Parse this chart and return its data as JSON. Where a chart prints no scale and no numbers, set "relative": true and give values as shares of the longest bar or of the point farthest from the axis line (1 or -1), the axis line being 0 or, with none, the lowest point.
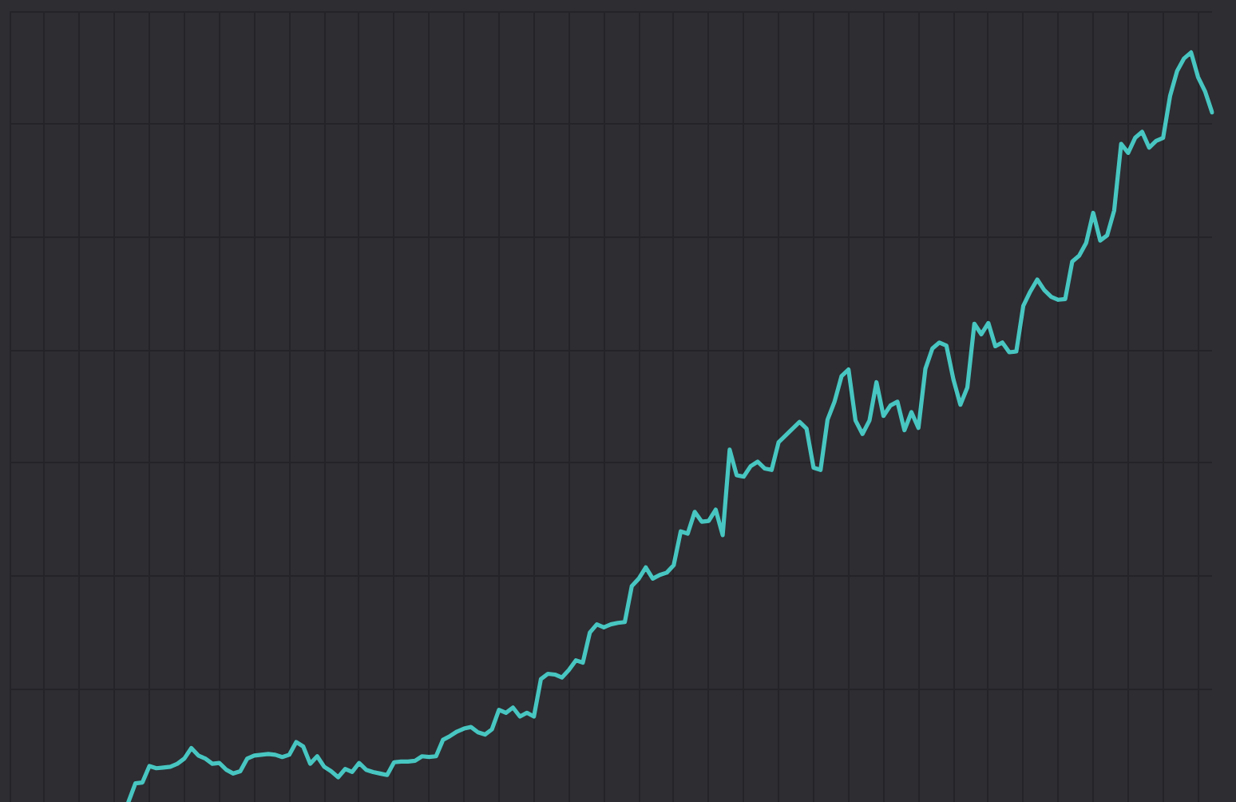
{
  "chart_data": {
    "type": "line",
    "relative": true,
    "grid": true,
    "marker": "none",
    "categories": [
      null,
      null,
      null,
      null,
      null,
      null,
      null,
      null,
      null,
      null,
      null,
      null,
      null,
      null,
      null,
      null,
      null,
      null,
      null,
      null,
      null,
      null,
      null,
      null,
      null,
      null,
      null,
      null,
      null,
      null,
      null,
      null,
      null,
      null,
      null,
      null,
      null,
      null,
      null,
      null,
      null,
      null,
      null,
      null,
      null,
      null,
      null,
      null,
      null,
      null,
      null,
      null,
      null,
      null,
      null,
      null,
      null,
      null,
      null,
      null,
      null,
      null,
      null,
      null,
      null,
      null,
      null,
      null,
      null,
      null,
      null,
      null,
      null,
      null,
      null,
      null,
      null,
      null,
      null,
      null,
      null,
      null,
      null,
      null,
      null,
      null,
      null,
      null,
      null,
      null,
      null,
      null,
      null,
      null,
      null,
      null,
      null,
      null,
      null,
      null,
      null,
      null,
      null,
      null,
      null,
      null,
      null,
      null,
      null,
      null,
      null,
      null,
      null,
      null,
      null,
      null,
      null,
      null,
      null,
      null,
      null,
      null,
      null,
      null,
      null,
      null,
      null,
      null,
      null,
      null,
      null,
      null,
      null,
      null,
      null,
      null,
      null,
      null,
      null,
      null,
      null,
      null,
      null,
      null,
      null,
      null,
      null,
      null,
      null,
      null,
      null,
      null,
      null,
      null,
      null,
      null,
      null,
      null,
      null,
      null,
      null,
      null,
      null,
      null,
      null,
      null,
      null,
      null,
      null,
      null,
      null,
      null,
      null
    ],
    "series": [
      {
        "color": "#48c6c1",
        "values": [
          null,
          null,
          null,
          null,
          null,
          null,
          null,
          null,
          null,
          null,
          null,
          null,
          null,
          null,
          null,
          null,
          null,
          0,
          0.025,
          0.026,
          0.048,
          0.045,
          0.046,
          0.047,
          0.051,
          0.058,
          0.072,
          0.062,
          0.058,
          0.051,
          0.052,
          0.043,
          0.038,
          0.041,
          0.058,
          0.062,
          0.063,
          0.064,
          0.063,
          0.06,
          0.063,
          0.08,
          0.074,
          0.051,
          0.061,
          0.047,
          0.041,
          0.033,
          0.044,
          0.04,
          0.052,
          0.043,
          0.04,
          0.038,
          0.036,
          0.053,
          0.054,
          0.054,
          0.055,
          0.061,
          0.06,
          0.061,
          0.083,
          0.088,
          0.094,
          0.098,
          0.1,
          0.093,
          0.09,
          0.097,
          0.123,
          0.119,
          0.126,
          0.114,
          0.119,
          0.114,
          0.164,
          0.171,
          0.17,
          0.166,
          0.176,
          0.189,
          0.186,
          0.226,
          0.237,
          0.233,
          0.237,
          0.239,
          0.24,
          0.288,
          0.298,
          0.313,
          0.298,
          0.303,
          0.306,
          0.316,
          0.361,
          0.358,
          0.387,
          0.374,
          0.375,
          0.39,
          0.356,
          0.47,
          0.436,
          0.434,
          0.448,
          0.454,
          0.445,
          0.443,
          0.48,
          0.489,
          0.498,
          0.507,
          0.498,
          0.446,
          0.443,
          0.51,
          0.534,
          0.568,
          0.577,
          0.509,
          0.491,
          0.509,
          0.56,
          0.515,
          0.529,
          0.534,
          0.496,
          0.52,
          0.499,
          0.578,
          0.605,
          0.613,
          0.609,
          0.564,
          0.53,
          0.553,
          0.638,
          0.624,
          0.639,
          0.608,
          0.613,
          0.6,
          0.601,
          0.662,
          0.681,
          0.697,
          0.683,
          0.674,
          0.67,
          0.671,
          0.721,
          0.729,
          0.746,
          0.786,
          0.749,
          0.756,
          0.789,
          0.878,
          0.866,
          0.886,
          0.894,
          0.873,
          0.882,
          0.886,
          0.942,
          0.975,
          0.992,
          1,
          0.967,
          0.948,
          0.92
        ]
      }
    ]
  }
}
